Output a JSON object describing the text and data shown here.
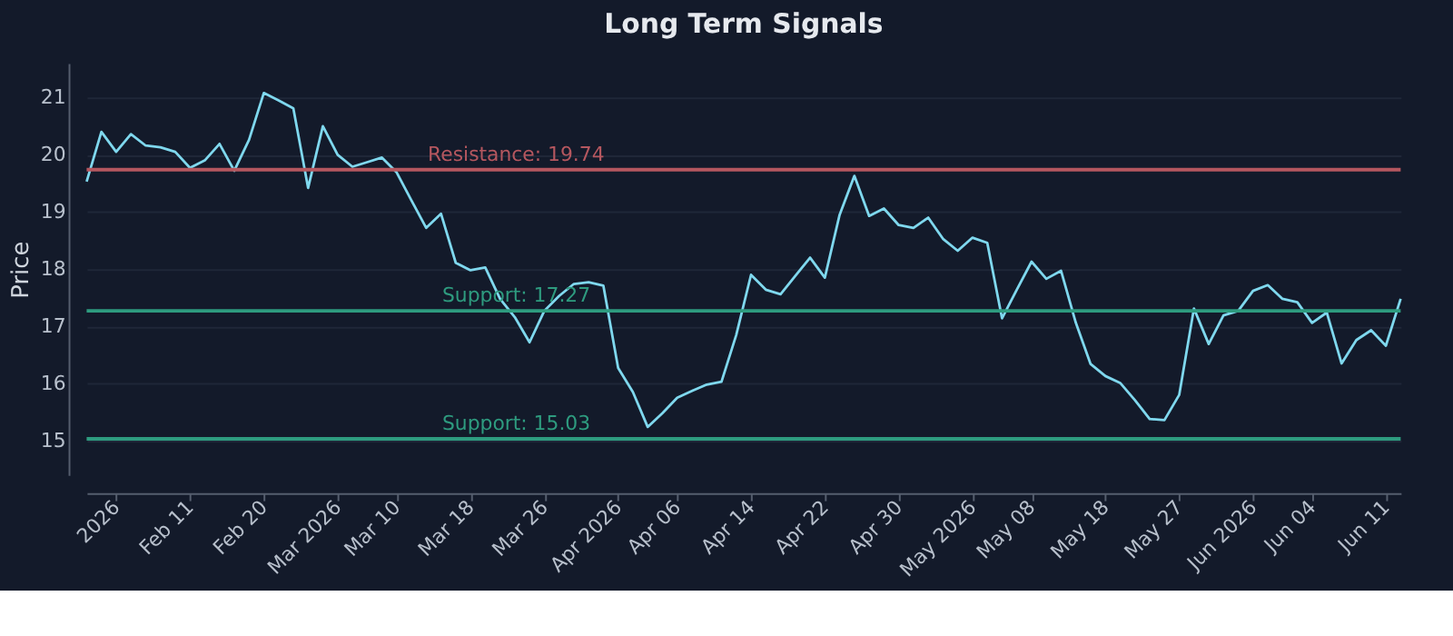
{
  "chart_data": {
    "type": "line",
    "title": "Long Term Signals",
    "ylabel": "Price",
    "categories": [
      null,
      null,
      "2026",
      null,
      null,
      null,
      null,
      "Feb 11",
      null,
      null,
      null,
      null,
      "Feb 20",
      null,
      null,
      null,
      null,
      "Mar 2026",
      null,
      null,
      null,
      "Mar 10",
      null,
      null,
      null,
      null,
      "Mar 18",
      null,
      null,
      null,
      null,
      "Mar 26",
      null,
      null,
      null,
      null,
      "Apr 2026",
      null,
      null,
      null,
      "Apr 06",
      null,
      null,
      null,
      null,
      "Apr 14",
      null,
      null,
      null,
      null,
      "Apr 22",
      null,
      null,
      null,
      null,
      "Apr 30",
      null,
      null,
      null,
      null,
      "May 2026",
      null,
      null,
      null,
      "May 08",
      null,
      null,
      null,
      null,
      "May 18",
      null,
      null,
      null,
      null,
      "May 27",
      null,
      null,
      null,
      null,
      "Jun 2026",
      null,
      null,
      null,
      "Jun 04",
      null,
      null,
      null,
      null,
      "Jun 11",
      null
    ],
    "series": [
      {
        "color": "#7fd8ee",
        "values": [
          19.53,
          20.4,
          20.05,
          20.36,
          20.16,
          20.13,
          20.05,
          19.77,
          19.9,
          20.19,
          19.72,
          20.26,
          21.08,
          20.95,
          20.81,
          19.42,
          20.5,
          20.0,
          19.79,
          19.87,
          19.95,
          19.69,
          19.2,
          18.72,
          18.97,
          18.11,
          17.98,
          18.03,
          17.48,
          17.16,
          16.72,
          17.27,
          17.53,
          17.74,
          17.77,
          17.71,
          16.27,
          15.85,
          15.24,
          15.48,
          15.75,
          15.87,
          15.98,
          16.03,
          16.85,
          17.9,
          17.64,
          17.56,
          17.88,
          18.2,
          17.85,
          18.95,
          19.63,
          18.93,
          19.06,
          18.77,
          18.72,
          18.9,
          18.53,
          18.32,
          18.55,
          18.46,
          17.14,
          17.64,
          18.13,
          17.83,
          17.97,
          17.06,
          16.34,
          16.13,
          16.01,
          15.71,
          15.38,
          15.36,
          15.8,
          17.31,
          16.69,
          17.19,
          17.27,
          17.62,
          17.72,
          17.48,
          17.42,
          17.06,
          17.24,
          16.35,
          16.76,
          16.93,
          16.66,
          17.48
        ]
      }
    ],
    "ylim": [
      14.4,
      21.6
    ],
    "yticks": [
      15,
      16,
      17,
      18,
      19,
      20,
      21
    ],
    "grid": "y",
    "line_style": "solid",
    "marker": "none",
    "ref_lines": [
      {
        "axis": "y",
        "value": 19.74,
        "label": "Resistance: 19.74",
        "color": "#b5575f"
      },
      {
        "axis": "y",
        "value": 17.27,
        "label": "Support: 17.27",
        "color": "#2e9b7f"
      },
      {
        "axis": "y",
        "value": 15.03,
        "label": "Support: 15.03",
        "color": "#2e9b7f"
      }
    ]
  }
}
